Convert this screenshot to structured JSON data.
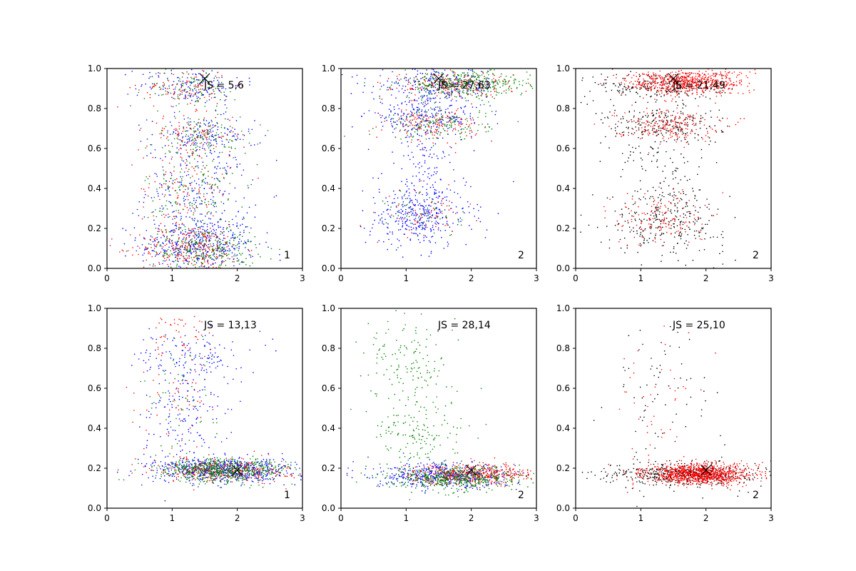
{
  "chart_data": [
    {
      "type": "scatter",
      "panel_number": "1",
      "js_label": "JS = 5,6",
      "xlim": [
        0,
        3
      ],
      "ylim": [
        0,
        1
      ],
      "x_ticks": [
        "0",
        "1",
        "2",
        "3"
      ],
      "y_ticks": [
        "0.0",
        "0.2",
        "0.4",
        "0.6",
        "0.8",
        "1.0"
      ],
      "marker": {
        "x": 1.5,
        "y": 0.95,
        "symbol": "x"
      },
      "series": [
        {
          "color": "#0000ff",
          "clusters": [
            {
              "cx": 1.4,
              "cy": 0.12,
              "sx": 0.45,
              "sy": 0.07,
              "n": 420
            },
            {
              "cx": 1.4,
              "cy": 0.38,
              "sx": 0.4,
              "sy": 0.12,
              "n": 220
            },
            {
              "cx": 1.45,
              "cy": 0.66,
              "sx": 0.4,
              "sy": 0.05,
              "n": 160
            },
            {
              "cx": 1.3,
              "cy": 0.92,
              "sx": 0.4,
              "sy": 0.05,
              "n": 150
            }
          ]
        },
        {
          "color": "#ff0000",
          "clusters": [
            {
              "cx": 1.3,
              "cy": 0.1,
              "sx": 0.4,
              "sy": 0.06,
              "n": 260
            },
            {
              "cx": 1.2,
              "cy": 0.4,
              "sx": 0.35,
              "sy": 0.12,
              "n": 120
            },
            {
              "cx": 1.3,
              "cy": 0.67,
              "sx": 0.35,
              "sy": 0.05,
              "n": 90
            },
            {
              "cx": 1.2,
              "cy": 0.9,
              "sx": 0.35,
              "sy": 0.05,
              "n": 90
            }
          ]
        },
        {
          "color": "#008000",
          "clusters": [
            {
              "cx": 1.5,
              "cy": 0.1,
              "sx": 0.4,
              "sy": 0.06,
              "n": 300
            },
            {
              "cx": 1.3,
              "cy": 0.38,
              "sx": 0.35,
              "sy": 0.12,
              "n": 150
            },
            {
              "cx": 1.5,
              "cy": 0.66,
              "sx": 0.35,
              "sy": 0.05,
              "n": 130
            },
            {
              "cx": 1.3,
              "cy": 0.9,
              "sx": 0.35,
              "sy": 0.05,
              "n": 110
            }
          ]
        }
      ]
    },
    {
      "type": "scatter",
      "panel_number": "2",
      "js_label": "JS = 27,63",
      "xlim": [
        0,
        3
      ],
      "ylim": [
        0,
        1
      ],
      "x_ticks": [
        "0",
        "1",
        "2",
        "3"
      ],
      "y_ticks": [
        "0.0",
        "0.2",
        "0.4",
        "0.6",
        "0.8",
        "1.0"
      ],
      "marker": {
        "x": 1.5,
        "y": 0.95,
        "symbol": "x"
      },
      "series": [
        {
          "color": "#0000ff",
          "clusters": [
            {
              "cx": 1.2,
              "cy": 0.26,
              "sx": 0.4,
              "sy": 0.08,
              "n": 350
            },
            {
              "cx": 1.25,
              "cy": 0.5,
              "sx": 0.3,
              "sy": 0.12,
              "n": 120
            },
            {
              "cx": 1.3,
              "cy": 0.76,
              "sx": 0.45,
              "sy": 0.05,
              "n": 250
            },
            {
              "cx": 1.5,
              "cy": 0.92,
              "sx": 0.5,
              "sy": 0.04,
              "n": 250
            }
          ]
        },
        {
          "color": "#ff0000",
          "clusters": [
            {
              "cx": 1.3,
              "cy": 0.27,
              "sx": 0.3,
              "sy": 0.06,
              "n": 60
            },
            {
              "cx": 1.4,
              "cy": 0.72,
              "sx": 0.35,
              "sy": 0.04,
              "n": 150
            },
            {
              "cx": 1.7,
              "cy": 0.92,
              "sx": 0.45,
              "sy": 0.03,
              "n": 200
            }
          ]
        },
        {
          "color": "#008000",
          "clusters": [
            {
              "cx": 1.3,
              "cy": 0.27,
              "sx": 0.3,
              "sy": 0.06,
              "n": 60
            },
            {
              "cx": 1.5,
              "cy": 0.72,
              "sx": 0.4,
              "sy": 0.04,
              "n": 160
            },
            {
              "cx": 1.9,
              "cy": 0.92,
              "sx": 0.5,
              "sy": 0.035,
              "n": 380
            }
          ]
        }
      ]
    },
    {
      "type": "scatter",
      "panel_number": "2",
      "js_label": "JS = 21,49",
      "xlim": [
        0,
        3
      ],
      "ylim": [
        0,
        1
      ],
      "x_ticks": [
        "0",
        "1",
        "2",
        "3"
      ],
      "y_ticks": [
        "0.0",
        "0.2",
        "0.4",
        "0.6",
        "0.8",
        "1.0"
      ],
      "marker": {
        "x": 1.5,
        "y": 0.95,
        "symbol": "x"
      },
      "series": [
        {
          "color": "#000000",
          "clusters": [
            {
              "cx": 1.4,
              "cy": 0.24,
              "sx": 0.45,
              "sy": 0.08,
              "n": 280
            },
            {
              "cx": 1.3,
              "cy": 0.5,
              "sx": 0.35,
              "sy": 0.12,
              "n": 110
            },
            {
              "cx": 1.3,
              "cy": 0.72,
              "sx": 0.45,
              "sy": 0.05,
              "n": 230
            },
            {
              "cx": 1.3,
              "cy": 0.91,
              "sx": 0.5,
              "sy": 0.04,
              "n": 220
            }
          ]
        },
        {
          "color": "#ff0000",
          "clusters": [
            {
              "cx": 1.3,
              "cy": 0.25,
              "sx": 0.35,
              "sy": 0.07,
              "n": 140
            },
            {
              "cx": 1.4,
              "cy": 0.72,
              "sx": 0.4,
              "sy": 0.04,
              "n": 200
            },
            {
              "cx": 1.7,
              "cy": 0.93,
              "sx": 0.45,
              "sy": 0.03,
              "n": 650
            }
          ]
        }
      ]
    },
    {
      "type": "scatter",
      "panel_number": "1",
      "js_label": "JS = 13,13",
      "xlim": [
        0,
        3
      ],
      "ylim": [
        0,
        1
      ],
      "x_ticks": [
        "0",
        "1",
        "2",
        "3"
      ],
      "y_ticks": [
        "0.0",
        "0.2",
        "0.4",
        "0.6",
        "0.8",
        "1.0"
      ],
      "marker": {
        "x": 2.0,
        "y": 0.19,
        "symbol": "x"
      },
      "series": [
        {
          "color": "#0000ff",
          "clusters": [
            {
              "cx": 1.8,
              "cy": 0.19,
              "sx": 0.55,
              "sy": 0.03,
              "n": 650
            },
            {
              "cx": 1.2,
              "cy": 0.5,
              "sx": 0.35,
              "sy": 0.15,
              "n": 170
            },
            {
              "cx": 1.3,
              "cy": 0.78,
              "sx": 0.4,
              "sy": 0.06,
              "n": 110
            }
          ]
        },
        {
          "color": "#ff0000",
          "clusters": [
            {
              "cx": 1.8,
              "cy": 0.19,
              "sx": 0.5,
              "sy": 0.03,
              "n": 300
            },
            {
              "cx": 1.1,
              "cy": 0.55,
              "sx": 0.3,
              "sy": 0.15,
              "n": 60
            },
            {
              "cx": 1.1,
              "cy": 0.9,
              "sx": 0.3,
              "sy": 0.06,
              "n": 40
            }
          ]
        },
        {
          "color": "#008000",
          "clusters": [
            {
              "cx": 1.8,
              "cy": 0.19,
              "sx": 0.5,
              "sy": 0.03,
              "n": 600
            },
            {
              "cx": 1.1,
              "cy": 0.55,
              "sx": 0.3,
              "sy": 0.15,
              "n": 60
            }
          ]
        }
      ]
    },
    {
      "type": "scatter",
      "panel_number": "2",
      "js_label": "JS = 28,14",
      "xlim": [
        0,
        3
      ],
      "ylim": [
        0,
        1
      ],
      "x_ticks": [
        "0",
        "1",
        "2",
        "3"
      ],
      "y_ticks": [
        "0.0",
        "0.2",
        "0.4",
        "0.6",
        "0.8",
        "1.0"
      ],
      "marker": {
        "x": 2.0,
        "y": 0.19,
        "symbol": "x"
      },
      "series": [
        {
          "color": "#0000ff",
          "clusters": [
            {
              "cx": 1.6,
              "cy": 0.16,
              "sx": 0.55,
              "sy": 0.03,
              "n": 500
            }
          ]
        },
        {
          "color": "#ff0000",
          "clusters": [
            {
              "cx": 2.0,
              "cy": 0.17,
              "sx": 0.45,
              "sy": 0.025,
              "n": 450
            }
          ]
        },
        {
          "color": "#008000",
          "clusters": [
            {
              "cx": 1.8,
              "cy": 0.15,
              "sx": 0.5,
              "sy": 0.03,
              "n": 500
            },
            {
              "cx": 1.2,
              "cy": 0.35,
              "sx": 0.35,
              "sy": 0.1,
              "n": 140
            },
            {
              "cx": 1.1,
              "cy": 0.7,
              "sx": 0.35,
              "sy": 0.15,
              "n": 170
            }
          ]
        }
      ]
    },
    {
      "type": "scatter",
      "panel_number": "2",
      "js_label": "JS = 25,10",
      "xlim": [
        0,
        3
      ],
      "ylim": [
        0,
        1
      ],
      "x_ticks": [
        "0",
        "1",
        "2",
        "3"
      ],
      "y_ticks": [
        "0.0",
        "0.2",
        "0.4",
        "0.6",
        "0.8",
        "1.0"
      ],
      "marker": {
        "x": 2.0,
        "y": 0.19,
        "symbol": "x"
      },
      "series": [
        {
          "color": "#000000",
          "clusters": [
            {
              "cx": 1.7,
              "cy": 0.17,
              "sx": 0.6,
              "sy": 0.03,
              "n": 500
            },
            {
              "cx": 1.3,
              "cy": 0.55,
              "sx": 0.4,
              "sy": 0.2,
              "n": 80
            }
          ]
        },
        {
          "color": "#ff0000",
          "clusters": [
            {
              "cx": 1.9,
              "cy": 0.17,
              "sx": 0.4,
              "sy": 0.025,
              "n": 1000
            },
            {
              "cx": 1.2,
              "cy": 0.5,
              "sx": 0.35,
              "sy": 0.2,
              "n": 50
            }
          ]
        }
      ]
    }
  ]
}
